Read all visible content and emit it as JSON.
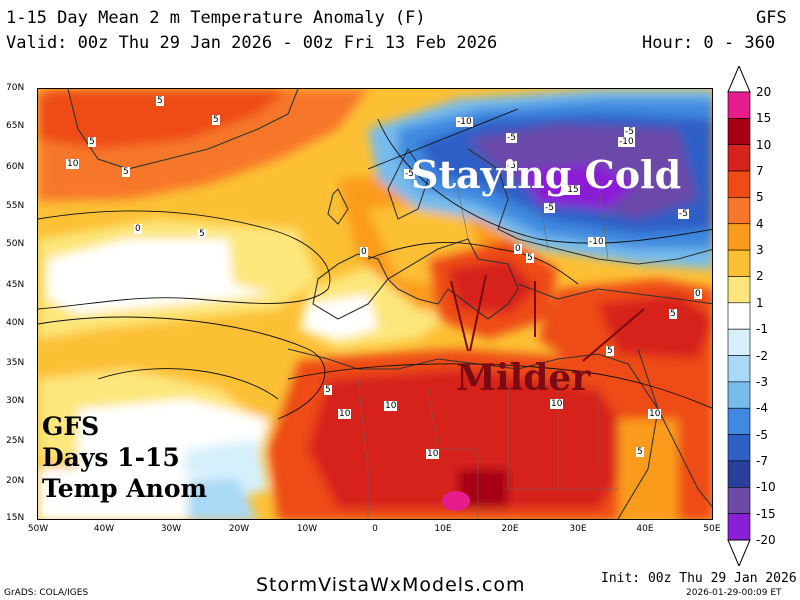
{
  "header": {
    "title": "1-15 Day Mean 2 m Temperature Anomaly (F)",
    "model": "GFS",
    "valid": "Valid: 00z Thu 29 Jan 2026 - 00z Fri 13 Feb 2026",
    "hours": "Hour: 0 - 360"
  },
  "lat_labels": [
    "70N",
    "65N",
    "60N",
    "55N",
    "50N",
    "45N",
    "40N",
    "35N",
    "30N",
    "25N",
    "20N",
    "15N"
  ],
  "lon_labels": [
    "50W",
    "40W",
    "30W",
    "20W",
    "10W",
    "0",
    "10E",
    "20E",
    "30E",
    "40E",
    "50E"
  ],
  "colorbar": {
    "labels": [
      "20",
      "15",
      "10",
      "7",
      "5",
      "4",
      "3",
      "2",
      "1",
      "-1",
      "-2",
      "-3",
      "-4",
      "-5",
      "-7",
      "-10",
      "-15",
      "-20"
    ],
    "colors": [
      "#e61b8c",
      "#a50014",
      "#d7231f",
      "#ee4c14",
      "#f7772a",
      "#fb9b1c",
      "#fcc034",
      "#fde67c",
      "#ffffff",
      "#d6f0fb",
      "#a9d9f5",
      "#77bbed",
      "#3f8ae0",
      "#2d5fc6",
      "#2a3f9c",
      "#6b4aa8",
      "#8a1fd6"
    ]
  },
  "contour_labels": [
    {
      "text": "5"
    },
    {
      "text": "5"
    },
    {
      "text": "5"
    },
    {
      "text": "10"
    },
    {
      "text": "5"
    },
    {
      "text": "5"
    },
    {
      "text": "-10"
    },
    {
      "text": "-5"
    },
    {
      "text": "-5"
    },
    {
      "text": "-10"
    },
    {
      "text": "-5"
    },
    {
      "text": "-5"
    },
    {
      "text": "-15"
    },
    {
      "text": "-5"
    },
    {
      "text": "-10"
    },
    {
      "text": "-5"
    },
    {
      "text": "0"
    },
    {
      "text": "0"
    },
    {
      "text": "0"
    },
    {
      "text": "5"
    },
    {
      "text": "0"
    },
    {
      "text": "5"
    },
    {
      "text": "5"
    },
    {
      "text": "5"
    },
    {
      "text": "10"
    },
    {
      "text": "10"
    },
    {
      "text": "10"
    },
    {
      "text": "10"
    },
    {
      "text": "10"
    },
    {
      "text": "5"
    }
  ],
  "annotations": {
    "staying_cold": "Staying Cold",
    "milder": "Milder",
    "gfs_box": [
      "GFS",
      "Days 1-15",
      "Temp Anom"
    ]
  },
  "footer": {
    "grads": "GrADS: COLA/IGES",
    "site": "StormVistaWxModels.com",
    "init": "Init: 00z Thu 29 Jan 2026",
    "stamp": "2026-01-29-00:09 ET"
  }
}
